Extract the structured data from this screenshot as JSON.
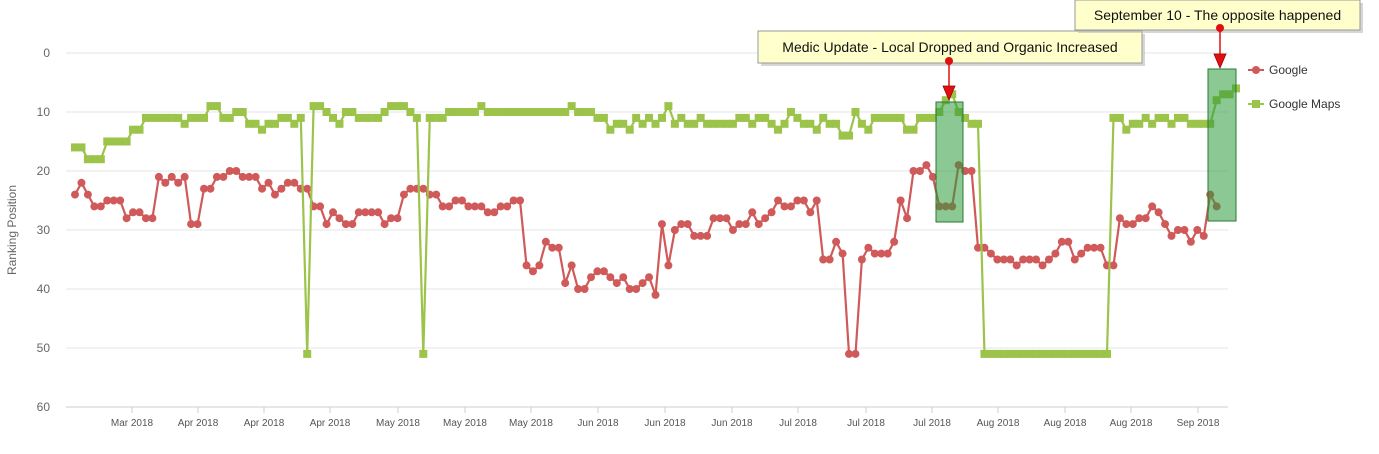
{
  "chart_data": {
    "type": "line",
    "xlabel": "",
    "ylabel": "Ranking Position",
    "ylim": [
      0,
      60
    ],
    "y_reversed": true,
    "y_ticks": [
      0,
      10,
      20,
      30,
      40,
      50,
      60
    ],
    "x_tick_labels": [
      "Mar 2018",
      "Apr 2018",
      "Apr 2018",
      "Apr 2018",
      "May 2018",
      "May 2018",
      "May 2018",
      "Jun 2018",
      "Jun 2018",
      "Jun 2018",
      "Jul 2018",
      "Jul 2018",
      "Jul 2018",
      "Aug 2018",
      "Aug 2018",
      "Aug 2018",
      "Sep 2018"
    ],
    "grid": true,
    "legend_position": "right",
    "series": [
      {
        "name": "Google",
        "color": "#d05a5a",
        "marker": "circle",
        "values": [
          24,
          22,
          24,
          26,
          26,
          25,
          25,
          25,
          28,
          27,
          27,
          28,
          28,
          21,
          22,
          21,
          22,
          21,
          29,
          29,
          23,
          23,
          21,
          21,
          20,
          20,
          21,
          21,
          21,
          23,
          22,
          24,
          23,
          22,
          22,
          23,
          23,
          26,
          26,
          29,
          27,
          28,
          29,
          29,
          27,
          27,
          27,
          27,
          29,
          28,
          28,
          24,
          23,
          23,
          23,
          24,
          24,
          26,
          26,
          25,
          25,
          26,
          26,
          26,
          27,
          27,
          26,
          26,
          25,
          25,
          36,
          37,
          36,
          32,
          33,
          33,
          39,
          36,
          40,
          40,
          38,
          37,
          37,
          38,
          39,
          38,
          40,
          40,
          39,
          38,
          41,
          29,
          36,
          30,
          29,
          29,
          31,
          31,
          31,
          28,
          28,
          28,
          30,
          29,
          29,
          27,
          29,
          28,
          27,
          25,
          26,
          26,
          25,
          25,
          27,
          25,
          35,
          35,
          32,
          34,
          51,
          51,
          35,
          33,
          34,
          34,
          34,
          32,
          25,
          28,
          20,
          20,
          19,
          21,
          26,
          26,
          26,
          19,
          20,
          20,
          33,
          33,
          34,
          35,
          35,
          35,
          36,
          35,
          35,
          35,
          36,
          35,
          34,
          32,
          32,
          35,
          34,
          33,
          33,
          33,
          36,
          36,
          28,
          29,
          29,
          28,
          28,
          26,
          27,
          29,
          31,
          30,
          30,
          32,
          30,
          31,
          24,
          26
        ]
      },
      {
        "name": "Google Maps",
        "color": "#9cc34a",
        "marker": "square",
        "values": [
          16,
          16,
          18,
          18,
          18,
          15,
          15,
          15,
          15,
          13,
          13,
          11,
          11,
          11,
          11,
          11,
          11,
          12,
          11,
          11,
          11,
          9,
          9,
          11,
          11,
          10,
          10,
          12,
          12,
          13,
          12,
          12,
          11,
          11,
          12,
          11,
          51,
          9,
          9,
          10,
          11,
          12,
          10,
          10,
          11,
          11,
          11,
          11,
          10,
          9,
          9,
          9,
          10,
          11,
          51,
          11,
          11,
          11,
          10,
          10,
          10,
          10,
          10,
          9,
          10,
          10,
          10,
          10,
          10,
          10,
          10,
          10,
          10,
          10,
          10,
          10,
          10,
          9,
          10,
          10,
          10,
          11,
          11,
          13,
          12,
          12,
          13,
          11,
          12,
          11,
          12,
          11,
          9,
          12,
          11,
          12,
          12,
          11,
          12,
          12,
          12,
          12,
          12,
          11,
          11,
          12,
          11,
          11,
          12,
          13,
          12,
          10,
          11,
          12,
          12,
          13,
          11,
          12,
          12,
          14,
          14,
          10,
          12,
          13,
          11,
          11,
          11,
          11,
          11,
          13,
          13,
          11,
          11,
          11,
          10,
          8,
          7,
          10,
          11,
          12,
          12,
          51,
          51,
          51,
          51,
          51,
          51,
          51,
          51,
          51,
          51,
          51,
          51,
          51,
          51,
          51,
          51,
          51,
          51,
          51,
          51,
          11,
          11,
          13,
          12,
          12,
          11,
          12,
          11,
          11,
          12,
          11,
          11,
          12,
          12,
          12,
          12,
          8,
          7,
          7,
          6
        ]
      }
    ],
    "annotations": [
      "Medic Update - Local Dropped and Organic Increased",
      "September 10 - The opposite happened"
    ]
  },
  "style": {
    "highlight_fill": "#2e9b3a",
    "annotation_fill": "#ffffcc",
    "arrow_color": "#e01010"
  }
}
